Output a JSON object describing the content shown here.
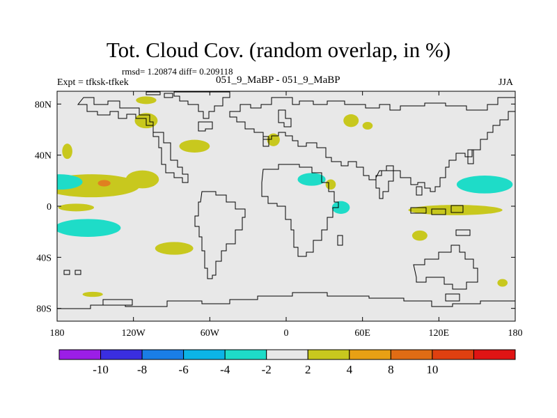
{
  "title": "Tot. Cloud Cov. (random overlap, in %)",
  "stats": "rmsd= 1.20874 diff= 0.209118",
  "left_label": "Expt = tfksk-tfkek",
  "subtitle": "051_9_MaBP - 051_9_MaBP",
  "season": "JJA",
  "colors": {
    "background": "#ffffff",
    "map_fill": "#e8e8e8",
    "coastline": "#000000",
    "pos_2_4": "#c8c81e",
    "pos_4_8": "#e08020",
    "neg_4_2": "#1edcc8"
  },
  "chart_data": {
    "type": "heatmap",
    "title": "Tot. Cloud Cov. (random overlap, in %)",
    "xlabel": "",
    "ylabel": "",
    "xlim": [
      -180,
      180
    ],
    "ylim": [
      -90,
      90
    ],
    "x_ticks": [
      {
        "value": -180,
        "label": "180"
      },
      {
        "value": -120,
        "label": "120W"
      },
      {
        "value": -60,
        "label": "60W"
      },
      {
        "value": 0,
        "label": "0"
      },
      {
        "value": 60,
        "label": "60E"
      },
      {
        "value": 120,
        "label": "120E"
      },
      {
        "value": 180,
        "label": "180"
      }
    ],
    "y_ticks": [
      {
        "value": 80,
        "label": "80N"
      },
      {
        "value": 40,
        "label": "40N"
      },
      {
        "value": 0,
        "label": "0"
      },
      {
        "value": -40,
        "label": "40S"
      },
      {
        "value": -80,
        "label": "80S"
      }
    ],
    "colorbar": {
      "colors": [
        "#9b1ee6",
        "#3a2ee0",
        "#1a7ee6",
        "#0cb4e6",
        "#1edcc8",
        "#e8e8e8",
        "#c8c81e",
        "#e8a014",
        "#e06c14",
        "#e04010",
        "#e01414"
      ],
      "labels": [
        "-10",
        "-8",
        "-6",
        "-4",
        "-2",
        "2",
        "4",
        "8",
        "10"
      ]
    },
    "regions": [
      {
        "name": "north-pacific-positive",
        "level": "2 to 4",
        "lon": -153,
        "lat": 16,
        "rx": 38,
        "ry": 9,
        "color": "#c8c81e"
      },
      {
        "name": "north-pacific-core",
        "level": "4 to 8",
        "lon": -143,
        "lat": 18,
        "rx": 5,
        "ry": 2.5,
        "color": "#e08020"
      },
      {
        "name": "east-pacific-positive",
        "level": "2 to 4",
        "lon": -113,
        "lat": 21,
        "rx": 13,
        "ry": 7,
        "color": "#c8c81e"
      },
      {
        "name": "west-pacific-negative",
        "level": "-4 to -2",
        "lon": -178,
        "lat": 19,
        "rx": 18,
        "ry": 6,
        "color": "#1edcc8"
      },
      {
        "name": "south-pacific-negative",
        "level": "-4 to -2",
        "lon": -156,
        "lat": -17,
        "rx": 26,
        "ry": 7,
        "color": "#1edcc8"
      },
      {
        "name": "equatorial-pacific-positive",
        "level": "2 to 4",
        "lon": -165,
        "lat": -1,
        "rx": 14,
        "ry": 3,
        "color": "#c8c81e"
      },
      {
        "name": "nw-atlantic-positive",
        "level": "2 to 4",
        "lon": -172,
        "lat": 43,
        "rx": 4,
        "ry": 6,
        "color": "#c8c81e"
      },
      {
        "name": "north-america-positive",
        "level": "2 to 4",
        "lon": -110,
        "lat": 67,
        "rx": 9,
        "ry": 6,
        "color": "#c8c81e"
      },
      {
        "name": "greenland-positive",
        "level": "2 to 4",
        "lon": -110,
        "lat": 83,
        "rx": 8,
        "ry": 3,
        "color": "#c8c81e"
      },
      {
        "name": "north-atlantic-positive",
        "level": "2 to 4",
        "lon": -72,
        "lat": 47,
        "rx": 12,
        "ry": 5,
        "color": "#c8c81e"
      },
      {
        "name": "south-america-positive",
        "level": "2 to 4",
        "lon": -88,
        "lat": -33,
        "rx": 15,
        "ry": 5,
        "color": "#c8c81e"
      },
      {
        "name": "africa-negative",
        "level": "-4 to -2",
        "lon": 20,
        "lat": 21,
        "rx": 11,
        "ry": 5,
        "color": "#1edcc8"
      },
      {
        "name": "east-africa-positive",
        "level": "2 to 4",
        "lon": 35,
        "lat": 17,
        "rx": 4,
        "ry": 4,
        "color": "#c8c81e"
      },
      {
        "name": "arabia-negative",
        "level": "-4 to -2",
        "lon": 43,
        "lat": -1,
        "rx": 7,
        "ry": 5,
        "color": "#1edcc8"
      },
      {
        "name": "siberia-positive-1",
        "level": "2 to 4",
        "lon": 51,
        "lat": 67,
        "rx": 6,
        "ry": 5,
        "color": "#c8c81e"
      },
      {
        "name": "siberia-positive-2",
        "level": "2 to 4",
        "lon": 64,
        "lat": 63,
        "rx": 4,
        "ry": 3,
        "color": "#c8c81e"
      },
      {
        "name": "russia-positive",
        "level": "2 to 4",
        "lon": -10,
        "lat": 52,
        "rx": 5,
        "ry": 5,
        "color": "#c8c81e"
      },
      {
        "name": "indian-ocean-positive",
        "level": "2 to 4",
        "lon": 133,
        "lat": -3,
        "rx": 37,
        "ry": 4,
        "color": "#c8c81e"
      },
      {
        "name": "west-pacific-negative-east",
        "level": "-4 to -2",
        "lon": 156,
        "lat": 17,
        "rx": 22,
        "ry": 7,
        "color": "#1edcc8"
      },
      {
        "name": "south-indian-positive",
        "level": "2 to 4",
        "lon": 105,
        "lat": -23,
        "rx": 6,
        "ry": 4,
        "color": "#c8c81e"
      },
      {
        "name": "south-ocean-positive",
        "level": "2 to 4",
        "lon": 170,
        "lat": -60,
        "rx": 4,
        "ry": 3,
        "color": "#c8c81e"
      },
      {
        "name": "antarctic-positive",
        "level": "2 to 4",
        "lon": -152,
        "lat": -69,
        "rx": 8,
        "ry": 2,
        "color": "#c8c81e"
      }
    ]
  }
}
